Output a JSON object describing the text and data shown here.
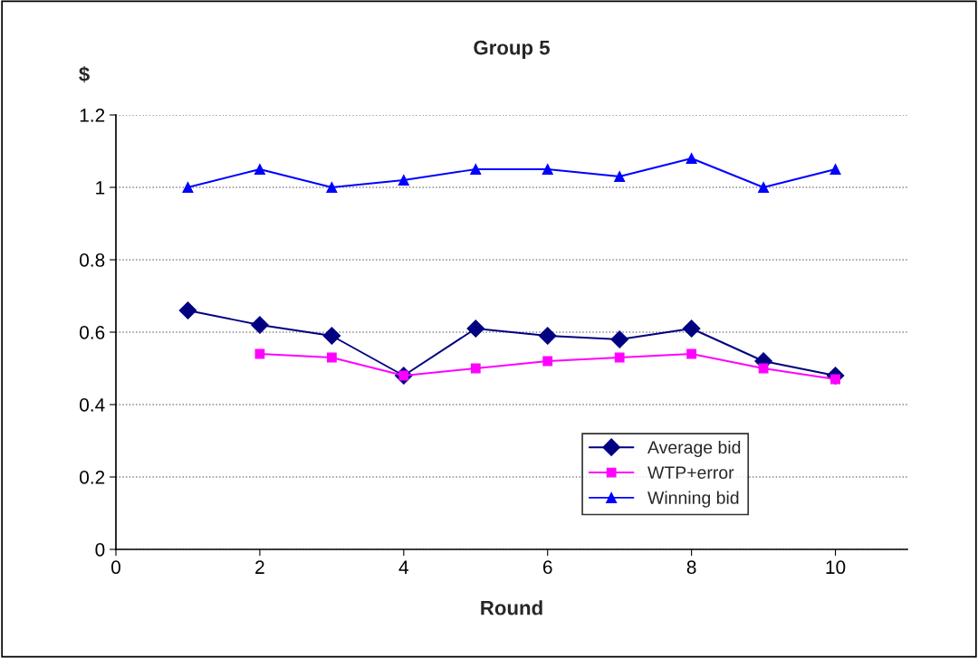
{
  "chart_data": {
    "type": "line",
    "title": "Group 5",
    "xlabel": "Round",
    "ylabel": "$",
    "x": [
      1,
      2,
      3,
      4,
      5,
      6,
      7,
      8,
      9,
      10
    ],
    "series": [
      {
        "name": "Average bid",
        "color": "#000080",
        "marker": "diamond",
        "values": [
          0.66,
          0.62,
          0.59,
          0.48,
          0.61,
          0.59,
          0.58,
          0.61,
          0.52,
          0.48
        ]
      },
      {
        "name": "WTP+error",
        "color": "#ff00ff",
        "marker": "square",
        "values": [
          null,
          0.54,
          0.53,
          0.48,
          0.5,
          0.52,
          0.53,
          0.54,
          0.5,
          0.47
        ]
      },
      {
        "name": "Winning bid",
        "color": "#0000ff",
        "marker": "triangle",
        "values": [
          1.0,
          1.05,
          1.0,
          1.02,
          1.05,
          1.05,
          1.03,
          1.08,
          1.0,
          1.05
        ]
      }
    ],
    "xlim": [
      0,
      11
    ],
    "xticks": [
      0,
      2,
      4,
      6,
      8,
      10
    ],
    "ylim": [
      0,
      1.2
    ],
    "yticks": [
      0,
      {
        "value": 0.2,
        "label": "0.2"
      },
      {
        "value": 0.4,
        "label": "0.4"
      },
      {
        "value": 0.6,
        "label": "0.6"
      },
      {
        "value": 0.8,
        "label": "0.8"
      },
      1,
      {
        "value": 1.2,
        "label": "1.2"
      }
    ],
    "grid": "y",
    "legend": "bottom right",
    "line_style": "solid"
  }
}
